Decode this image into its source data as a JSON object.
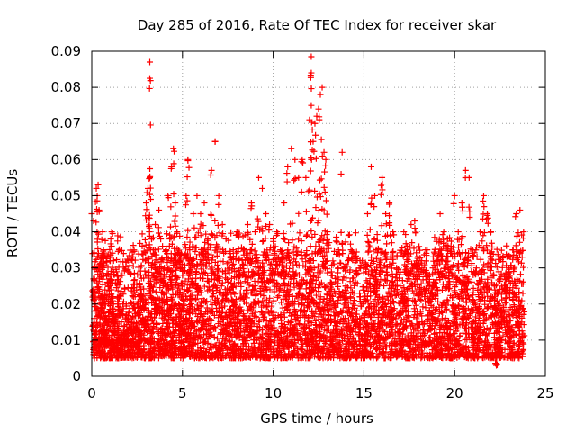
{
  "chart_data": {
    "type": "scatter",
    "title": "Day 285 of 2016, Rate Of TEC Index for receiver skar",
    "xlabel": "GPS time / hours",
    "ylabel": "ROTI / TECUs",
    "xlim": [
      0,
      25
    ],
    "ylim": [
      0,
      0.09
    ],
    "x_ticks": [
      0,
      5,
      10,
      15,
      20,
      25
    ],
    "x_tick_labels": [
      "0",
      "5",
      "10",
      "15",
      "20",
      "25"
    ],
    "y_ticks": [
      0,
      0.01,
      0.02,
      0.03,
      0.04,
      0.05,
      0.06,
      0.07,
      0.08,
      0.09
    ],
    "y_tick_labels": [
      "0",
      "0.01",
      "0.02",
      "0.03",
      "0.04",
      "0.05",
      "0.06",
      "0.07",
      "0.08",
      "0.09"
    ],
    "grid": true,
    "marker": "+",
    "marker_color": "#ff0000",
    "series": [
      {
        "name": "ROTI",
        "points": [
          [
            0.0,
            0.045
          ],
          [
            0.1,
            0.043
          ],
          [
            0.15,
            0.027
          ],
          [
            0.2,
            0.02
          ],
          [
            0.25,
            0.052
          ],
          [
            0.3,
            0.05
          ],
          [
            0.35,
            0.053
          ],
          [
            0.4,
            0.046
          ],
          [
            0.45,
            0.03
          ],
          [
            0.5,
            0.028
          ],
          [
            0.55,
            0.022
          ],
          [
            0.6,
            0.04
          ],
          [
            0.65,
            0.035
          ],
          [
            0.7,
            0.018
          ],
          [
            0.8,
            0.016
          ],
          [
            0.9,
            0.025
          ],
          [
            1.0,
            0.027
          ],
          [
            1.05,
            0.038
          ],
          [
            1.1,
            0.04
          ],
          [
            1.2,
            0.02
          ],
          [
            1.3,
            0.015
          ],
          [
            1.4,
            0.012
          ],
          [
            1.5,
            0.022
          ],
          [
            1.6,
            0.012
          ],
          [
            1.7,
            0.018
          ],
          [
            1.8,
            0.014
          ],
          [
            1.9,
            0.02
          ],
          [
            2.0,
            0.016
          ],
          [
            2.1,
            0.018
          ],
          [
            2.2,
            0.012
          ],
          [
            2.3,
            0.022
          ],
          [
            2.4,
            0.018
          ],
          [
            2.5,
            0.02
          ],
          [
            2.6,
            0.015
          ],
          [
            2.7,
            0.028
          ],
          [
            2.8,
            0.022
          ],
          [
            2.9,
            0.019
          ],
          [
            3.0,
            0.048
          ],
          [
            3.1,
            0.052
          ],
          [
            3.2,
            0.055
          ],
          [
            3.3,
            0.038
          ],
          [
            3.4,
            0.035
          ],
          [
            3.5,
            0.042
          ],
          [
            3.6,
            0.03
          ],
          [
            3.7,
            0.046
          ],
          [
            3.8,
            0.038
          ],
          [
            3.9,
            0.036
          ],
          [
            4.0,
            0.03
          ],
          [
            4.1,
            0.035
          ],
          [
            4.2,
            0.05
          ],
          [
            4.3,
            0.038
          ],
          [
            4.4,
            0.058
          ],
          [
            4.5,
            0.063
          ],
          [
            4.6,
            0.048
          ],
          [
            4.7,
            0.04
          ],
          [
            4.8,
            0.032
          ],
          [
            4.9,
            0.03
          ],
          [
            5.0,
            0.028
          ],
          [
            5.1,
            0.024
          ],
          [
            5.2,
            0.05
          ],
          [
            5.3,
            0.06
          ],
          [
            5.4,
            0.035
          ],
          [
            5.5,
            0.03
          ],
          [
            5.6,
            0.045
          ],
          [
            5.8,
            0.05
          ],
          [
            6.0,
            0.045
          ],
          [
            6.2,
            0.048
          ],
          [
            6.4,
            0.038
          ],
          [
            6.6,
            0.057
          ],
          [
            6.8,
            0.065
          ],
          [
            7.0,
            0.05
          ],
          [
            7.2,
            0.042
          ],
          [
            7.4,
            0.038
          ],
          [
            7.6,
            0.03
          ],
          [
            7.8,
            0.035
          ],
          [
            8.0,
            0.04
          ],
          [
            8.2,
            0.03
          ],
          [
            8.4,
            0.035
          ],
          [
            8.6,
            0.042
          ],
          [
            8.8,
            0.048
          ],
          [
            9.0,
            0.04
          ],
          [
            9.2,
            0.055
          ],
          [
            9.4,
            0.052
          ],
          [
            9.6,
            0.045
          ],
          [
            9.8,
            0.042
          ],
          [
            10.0,
            0.038
          ],
          [
            10.2,
            0.04
          ],
          [
            10.4,
            0.035
          ],
          [
            10.6,
            0.048
          ],
          [
            10.8,
            0.058
          ],
          [
            11.0,
            0.063
          ],
          [
            11.2,
            0.06
          ],
          [
            11.4,
            0.055
          ],
          [
            11.6,
            0.06
          ],
          [
            11.8,
            0.055
          ],
          [
            12.0,
            0.071
          ],
          [
            12.1,
            0.075
          ],
          [
            12.2,
            0.065
          ],
          [
            12.3,
            0.07
          ],
          [
            12.4,
            0.072
          ],
          [
            12.5,
            0.074
          ],
          [
            12.6,
            0.078
          ],
          [
            12.7,
            0.08
          ],
          [
            12.8,
            0.062
          ],
          [
            12.9,
            0.06
          ],
          [
            13.0,
            0.04
          ],
          [
            13.2,
            0.028
          ],
          [
            13.4,
            0.02
          ],
          [
            13.6,
            0.035
          ],
          [
            13.8,
            0.062
          ],
          [
            14.0,
            0.025
          ],
          [
            14.2,
            0.018
          ],
          [
            14.4,
            0.02
          ],
          [
            14.6,
            0.015
          ],
          [
            14.8,
            0.022
          ],
          [
            15.0,
            0.03
          ],
          [
            15.2,
            0.045
          ],
          [
            15.4,
            0.058
          ],
          [
            15.6,
            0.05
          ],
          [
            15.8,
            0.035
          ],
          [
            16.0,
            0.055
          ],
          [
            16.2,
            0.045
          ],
          [
            16.4,
            0.048
          ],
          [
            16.6,
            0.04
          ],
          [
            16.8,
            0.03
          ],
          [
            17.0,
            0.025
          ],
          [
            17.2,
            0.04
          ],
          [
            17.4,
            0.035
          ],
          [
            17.6,
            0.042
          ],
          [
            17.8,
            0.043
          ],
          [
            18.0,
            0.032
          ],
          [
            18.2,
            0.03
          ],
          [
            18.4,
            0.035
          ],
          [
            18.6,
            0.028
          ],
          [
            18.8,
            0.03
          ],
          [
            19.0,
            0.032
          ],
          [
            19.2,
            0.045
          ],
          [
            19.4,
            0.04
          ],
          [
            19.6,
            0.038
          ],
          [
            19.8,
            0.036
          ],
          [
            20.0,
            0.05
          ],
          [
            20.2,
            0.04
          ],
          [
            20.4,
            0.048
          ],
          [
            20.6,
            0.057
          ],
          [
            20.8,
            0.055
          ],
          [
            21.0,
            0.035
          ],
          [
            21.2,
            0.03
          ],
          [
            21.4,
            0.04
          ],
          [
            21.6,
            0.05
          ],
          [
            21.8,
            0.045
          ],
          [
            22.0,
            0.04
          ],
          [
            22.2,
            0.025
          ],
          [
            22.4,
            0.02
          ],
          [
            22.6,
            0.018
          ],
          [
            22.8,
            0.025
          ],
          [
            23.0,
            0.03
          ],
          [
            23.2,
            0.035
          ],
          [
            23.4,
            0.045
          ],
          [
            23.6,
            0.046
          ],
          [
            23.8,
            0.04
          ],
          [
            3.2,
            0.087
          ],
          [
            3.2,
            0.0825
          ],
          [
            12.1,
            0.0885
          ],
          [
            12.1,
            0.084
          ],
          [
            22.3,
            0.003
          ]
        ]
      }
    ],
    "background_cloud": {
      "description_ranges_hours": [
        0,
        24
      ],
      "note": "dense band of points between roughly 0.005 and 0.03"
    }
  }
}
